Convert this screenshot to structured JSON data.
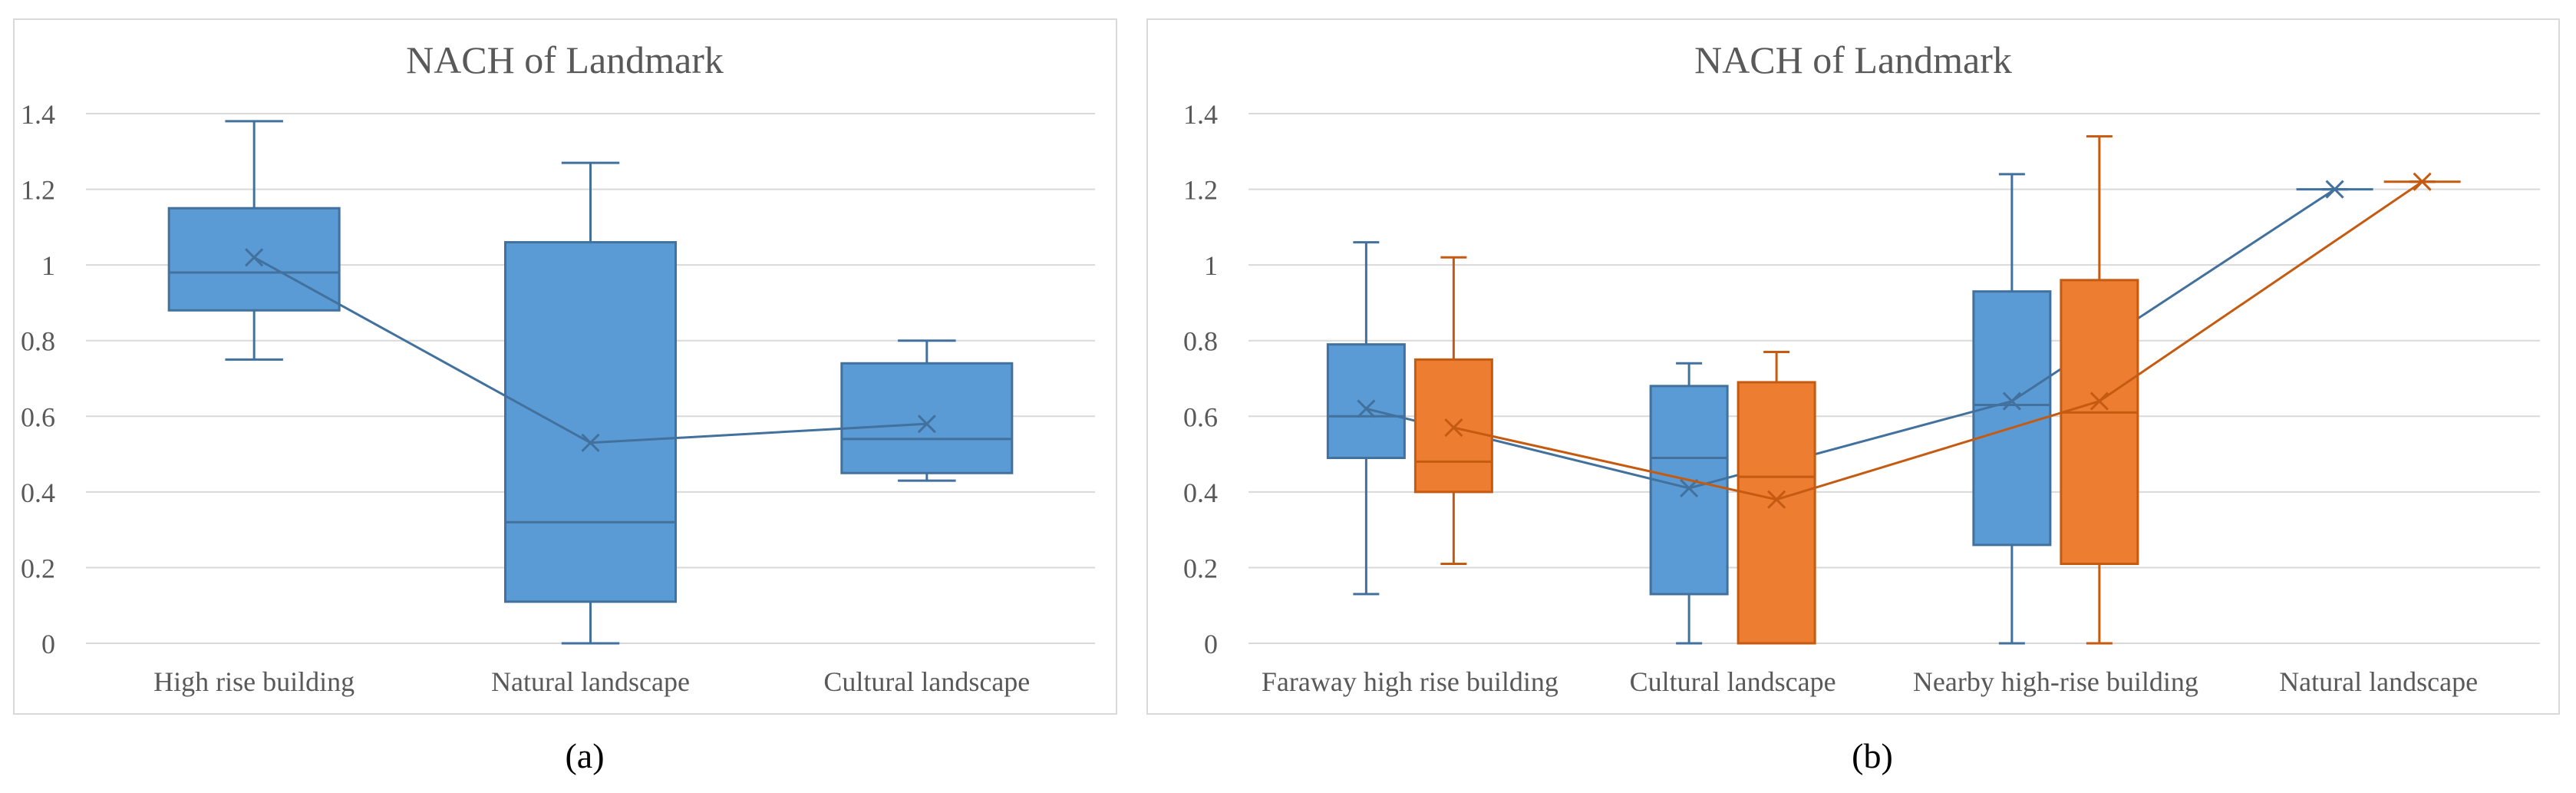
{
  "chart_data": [
    {
      "type": "box",
      "title": "NACH of  Landmark",
      "caption": "(a)",
      "xlabel": "",
      "ylabel": "",
      "ylim": [
        0,
        1.4
      ],
      "yticks": [
        0,
        0.2,
        0.4,
        0.6,
        0.8,
        1,
        1.2,
        1.4
      ],
      "ytick_labels": [
        "0",
        "0.2",
        "0.4",
        "0.6",
        "0.8",
        "1",
        "1.2",
        "1.4"
      ],
      "categories": [
        "High rise building",
        "Natural landscape",
        "Cultural landscape"
      ],
      "grid": true,
      "series": [
        {
          "name": "series-1",
          "color": "#5b9bd5",
          "stroke": "#41719c",
          "boxes": [
            {
              "min": 0.75,
              "q1": 0.88,
              "median": 0.98,
              "q3": 1.15,
              "max": 1.38,
              "mean": 1.02
            },
            {
              "min": 0.0,
              "q1": 0.11,
              "median": 0.32,
              "q3": 1.06,
              "max": 1.27,
              "mean": 0.53
            },
            {
              "min": 0.43,
              "q1": 0.45,
              "median": 0.54,
              "q3": 0.74,
              "max": 0.8,
              "mean": 0.58
            }
          ]
        }
      ]
    },
    {
      "type": "box",
      "title": "NACH of  Landmark",
      "caption": "(b)",
      "xlabel": "",
      "ylabel": "",
      "ylim": [
        0,
        1.4
      ],
      "yticks": [
        0,
        0.2,
        0.4,
        0.6,
        0.8,
        1,
        1.2,
        1.4
      ],
      "ytick_labels": [
        "0",
        "0.2",
        "0.4",
        "0.6",
        "0.8",
        "1",
        "1.2",
        "1.4"
      ],
      "categories": [
        "Faraway high rise building",
        "Cultural landscape",
        "Nearby high-rise building",
        "Natural landscape"
      ],
      "grid": true,
      "series": [
        {
          "name": "series-1",
          "color": "#5b9bd5",
          "stroke": "#41719c",
          "boxes": [
            {
              "min": 0.13,
              "q1": 0.49,
              "median": 0.6,
              "q3": 0.79,
              "max": 1.06,
              "mean": 0.62
            },
            {
              "min": 0.0,
              "q1": 0.13,
              "median": 0.49,
              "q3": 0.68,
              "max": 0.74,
              "mean": 0.41
            },
            {
              "min": 0.0,
              "q1": 0.26,
              "median": 0.63,
              "q3": 0.93,
              "max": 1.24,
              "mean": 0.64
            },
            {
              "min": 1.2,
              "q1": 1.2,
              "median": 1.2,
              "q3": 1.2,
              "max": 1.2,
              "mean": 1.2
            }
          ]
        },
        {
          "name": "series-2",
          "color": "#ed7d31",
          "stroke": "#c55a11",
          "boxes": [
            {
              "min": 0.21,
              "q1": 0.4,
              "median": 0.48,
              "q3": 0.75,
              "max": 1.02,
              "mean": 0.57
            },
            {
              "min": 0.0,
              "q1": 0.0,
              "median": 0.44,
              "q3": 0.69,
              "max": 0.77,
              "mean": 0.38
            },
            {
              "min": 0.0,
              "q1": 0.21,
              "median": 0.61,
              "q3": 0.96,
              "max": 1.34,
              "mean": 0.64
            },
            {
              "min": 1.22,
              "q1": 1.22,
              "median": 1.22,
              "q3": 1.22,
              "max": 1.22,
              "mean": 1.22
            }
          ]
        }
      ]
    }
  ]
}
